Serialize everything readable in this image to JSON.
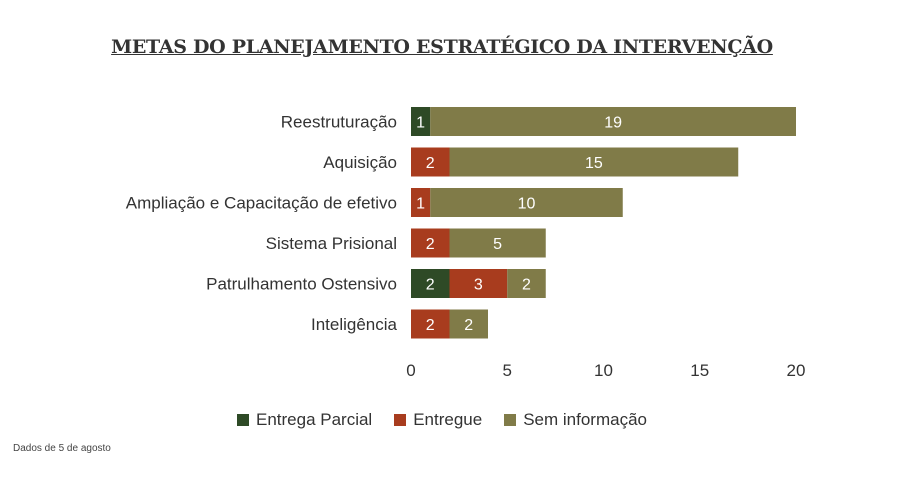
{
  "chart_data": {
    "type": "bar",
    "orientation": "horizontal",
    "stacked": true,
    "title": "METAS DO PLANEJAMENTO ESTRATÉGICO DA INTERVENÇÃO",
    "categories": [
      "Reestruturação",
      "Aquisição",
      "Ampliação e Capacitação de efetivo",
      "Sistema Prisional",
      "Patrulhamento Ostensivo",
      "Inteligência"
    ],
    "series": [
      {
        "name": "Entrega Parcial",
        "color": "#2e4a26",
        "values": [
          1,
          0,
          0,
          0,
          2,
          0
        ]
      },
      {
        "name": "Entregue",
        "color": "#a83c1e",
        "values": [
          0,
          2,
          1,
          2,
          3,
          2
        ]
      },
      {
        "name": "Sem informação",
        "color": "#807b48",
        "values": [
          19,
          15,
          10,
          5,
          2,
          2
        ]
      }
    ],
    "xlim": [
      0,
      20
    ],
    "xticks": [
      0,
      5,
      10,
      15,
      20
    ],
    "grid": false,
    "legend_position": "bottom"
  },
  "footnote": "Dados de 5 de agosto"
}
